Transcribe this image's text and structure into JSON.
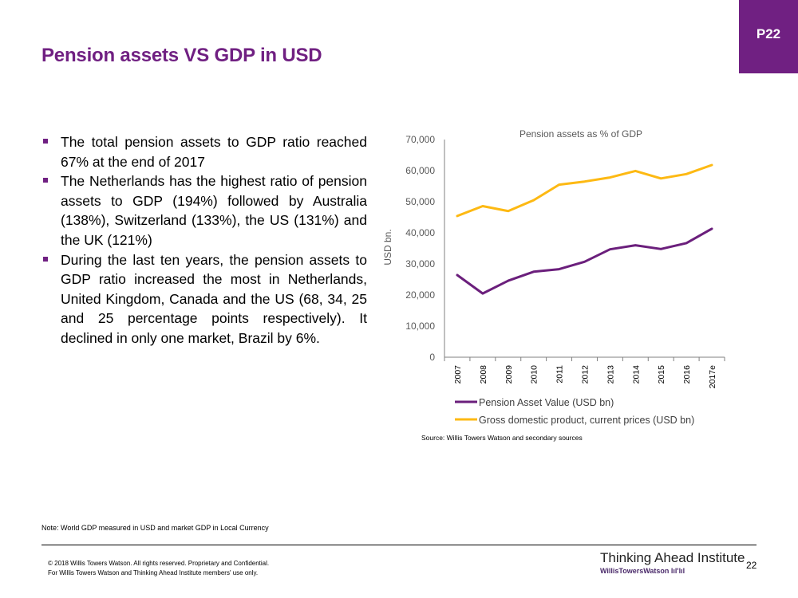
{
  "page_badge": "P22",
  "title": "Pension assets VS GDP in USD",
  "bullets": [
    "The total pension assets to GDP ratio reached 67% at the end of 2017",
    "The Netherlands has the highest ratio of pension assets to GDP (194%) followed by Australia (138%), Switzerland (133%), the US (131%) and the UK (121%)",
    "During the last ten years, the pension assets to GDP ratio increased the most in Netherlands, United Kingdom, Canada and the US (68, 34, 25 and 25 percentage points respectively). It declined in only one market, Brazil by 6%."
  ],
  "chart_data": {
    "type": "line",
    "title": "Pension assets as % of GDP",
    "ylabel": "USD bn.",
    "xlabel": "",
    "categories": [
      "2007",
      "2008",
      "2009",
      "2010",
      "2011",
      "2012",
      "2013",
      "2014",
      "2015",
      "2016",
      "2017e"
    ],
    "ylim": [
      0,
      70000
    ],
    "yticks": [
      "0",
      "10,000",
      "20,000",
      "30,000",
      "40,000",
      "50,000",
      "60,000",
      "70,000"
    ],
    "legend_position": "bottom",
    "series": [
      {
        "name": "Pension Asset Value (USD bn)",
        "color": "#6B1F7C",
        "values": [
          26400,
          20500,
          24600,
          27500,
          28300,
          30700,
          34700,
          36000,
          34800,
          36700,
          41300
        ]
      },
      {
        "name": "Gross domestic product, current prices (USD bn)",
        "color": "#FDB913",
        "values": [
          45400,
          48600,
          47000,
          50500,
          55500,
          56500,
          57800,
          59900,
          57500,
          58900,
          61800
        ]
      }
    ],
    "source": "Source: Willis Towers Watson and secondary sources"
  },
  "note": "Note: World GDP measured in USD and market GDP in Local Currency",
  "copyright_lines": [
    "© 2018 Willis Towers Watson. All rights reserved. Proprietary and Confidential.",
    "For Willis Towers Watson and Thinking Ahead Institute members' use only."
  ],
  "brand": {
    "main": "Thinking Ahead Institute",
    "sub": "WillisTowersWatson lıl'lıl"
  },
  "page_number": "22",
  "colors": {
    "accent": "#702082"
  }
}
